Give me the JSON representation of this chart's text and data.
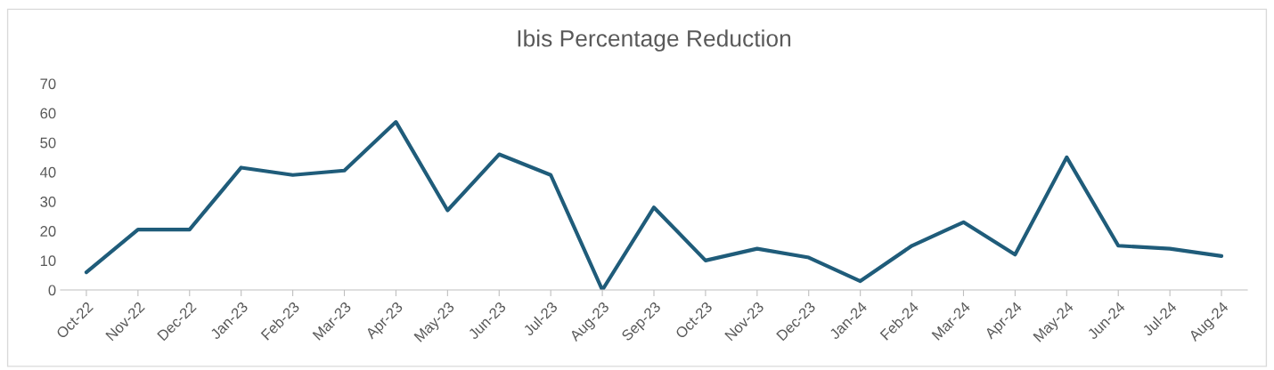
{
  "chart_data": {
    "type": "line",
    "title": "Ibis Percentage Reduction",
    "categories": [
      "Oct-22",
      "Nov-22",
      "Dec-22",
      "Jan-23",
      "Feb-23",
      "Mar-23",
      "Apr-23",
      "May-23",
      "Jun-23",
      "Jul-23",
      "Aug-23",
      "Sep-23",
      "Oct-23",
      "Nov-23",
      "Dec-23",
      "Jan-24",
      "Feb-24",
      "Mar-24",
      "Apr-24",
      "May-24",
      "Jun-24",
      "Jul-24",
      "Aug-24"
    ],
    "series": [
      {
        "color": "#1f5c7a",
        "values": [
          6,
          20.5,
          20.5,
          41.5,
          39,
          40.5,
          57,
          27,
          46,
          39,
          0,
          28,
          10,
          14,
          11,
          3,
          15,
          23,
          12,
          45,
          15,
          14,
          11.5
        ]
      }
    ],
    "ylim": [
      0,
      70
    ],
    "yticks": [
      0,
      10,
      20,
      30,
      40,
      50,
      60,
      70
    ],
    "grid": false,
    "marker": "none",
    "line_style": "solid"
  }
}
